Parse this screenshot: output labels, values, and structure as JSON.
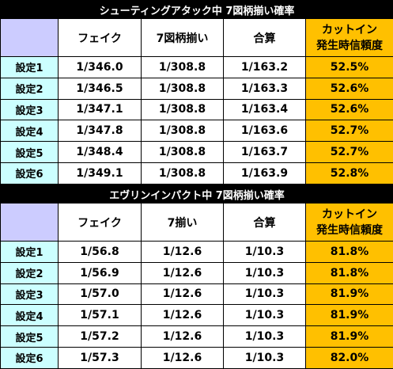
{
  "tables": [
    {
      "title": "シューティングアタック中 7図柄揃い確率",
      "headers": [
        "",
        "フェイク",
        "7図柄揃い",
        "合算",
        "カットイン\n発生時信頼度"
      ],
      "cut_header_line1": "カットイン",
      "cut_header_line2": "発生時信頼度",
      "rows": [
        {
          "label": "設定1",
          "fake": "1/346.0",
          "seven": "1/308.8",
          "total": "1/163.2",
          "cut": "52.5%"
        },
        {
          "label": "設定2",
          "fake": "1/346.5",
          "seven": "1/308.8",
          "total": "1/163.3",
          "cut": "52.6%"
        },
        {
          "label": "設定3",
          "fake": "1/347.1",
          "seven": "1/308.8",
          "total": "1/163.4",
          "cut": "52.6%"
        },
        {
          "label": "設定4",
          "fake": "1/347.8",
          "seven": "1/308.8",
          "total": "1/163.6",
          "cut": "52.7%"
        },
        {
          "label": "設定5",
          "fake": "1/348.4",
          "seven": "1/308.8",
          "total": "1/163.7",
          "cut": "52.7%"
        },
        {
          "label": "設定6",
          "fake": "1/349.1",
          "seven": "1/308.8",
          "total": "1/163.9",
          "cut": "52.8%"
        }
      ]
    },
    {
      "title": "エヴリンインパクト中 7図柄揃い確率",
      "headers": [
        "",
        "フェイク",
        "7揃い",
        "合算",
        "カットイン\n発生時信頼度"
      ],
      "cut_header_line1": "カットイン",
      "cut_header_line2": "発生時信頼度",
      "rows": [
        {
          "label": "設定1",
          "fake": "1/56.8",
          "seven": "1/12.6",
          "total": "1/10.3",
          "cut": "81.8%"
        },
        {
          "label": "設定2",
          "fake": "1/56.9",
          "seven": "1/12.6",
          "total": "1/10.3",
          "cut": "81.8%"
        },
        {
          "label": "設定3",
          "fake": "1/57.0",
          "seven": "1/12.6",
          "total": "1/10.3",
          "cut": "81.9%"
        },
        {
          "label": "設定4",
          "fake": "1/57.1",
          "seven": "1/12.6",
          "total": "1/10.3",
          "cut": "81.9%"
        },
        {
          "label": "設定5",
          "fake": "1/57.2",
          "seven": "1/12.6",
          "total": "1/10.3",
          "cut": "81.9%"
        },
        {
          "label": "設定6",
          "fake": "1/57.3",
          "seven": "1/12.6",
          "total": "1/10.3",
          "cut": "82.0%"
        }
      ]
    }
  ],
  "colors": {
    "title_bg": "#000000",
    "title_fg": "#ffffff",
    "header_blank": "#ccccff",
    "row_label": "#ccffff",
    "cut_in": "#ffc000"
  }
}
